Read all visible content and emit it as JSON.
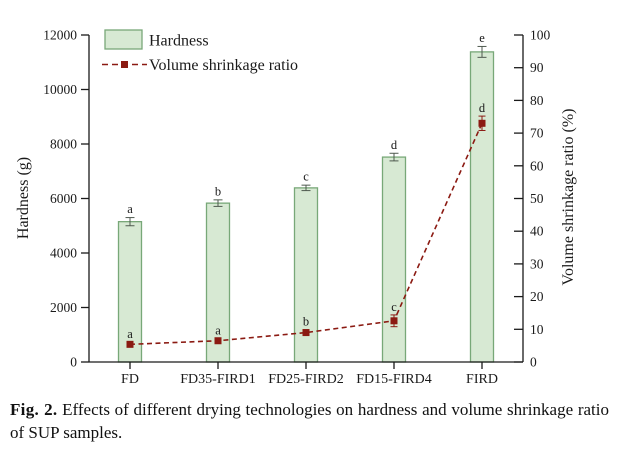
{
  "caption": {
    "label": "Fig. 2.",
    "text": " Effects of different drying technologies on hardness and volume shrinkage ratio of SUP samples."
  },
  "chart_data": {
    "type": "bar",
    "subtype": "bar-line-combo",
    "categories": [
      "FD",
      "FD35-FIRD1",
      "FD25-FIRD2",
      "FD15-FIRD4",
      "FIRD"
    ],
    "series": [
      {
        "name": "Hardness",
        "kind": "bar",
        "axis": "left",
        "values": [
          5150,
          5830,
          6390,
          7520,
          11380
        ],
        "errors": [
          150,
          120,
          100,
          140,
          200
        ],
        "sig_letters": [
          "a",
          "b",
          "c",
          "d",
          "e"
        ]
      },
      {
        "name": "Volume shrinkage ratio",
        "kind": "line",
        "axis": "right",
        "values": [
          5.4,
          6.5,
          9,
          12.6,
          73
        ],
        "errors": [
          0.7,
          0.7,
          0.9,
          1.8,
          2.2
        ],
        "sig_letters": [
          "a",
          "a",
          "b",
          "c",
          "d"
        ]
      }
    ],
    "left_axis": {
      "label": "Hardness (g)",
      "min": 0,
      "max": 12000,
      "ticks": [
        0,
        2000,
        4000,
        6000,
        8000,
        10000,
        12000
      ]
    },
    "right_axis": {
      "label": "Volume shrinkage ratio (%)",
      "min": 0,
      "max": 100,
      "ticks": [
        0,
        10,
        20,
        30,
        40,
        50,
        60,
        70,
        80,
        90,
        100
      ]
    },
    "legend": {
      "position": "top-left",
      "entries": [
        "Hardness",
        "Volume shrinkage ratio"
      ]
    },
    "grid": false,
    "colors": {
      "bar_fill": "#d7e9d3",
      "bar_stroke": "#78a878",
      "bar_error": "#4f5a4f",
      "line": "#8b1a12",
      "sig_letter_bar": "#3f463f",
      "sig_letter_line": "#8b1a12",
      "axis": "#1a1a1a"
    }
  }
}
